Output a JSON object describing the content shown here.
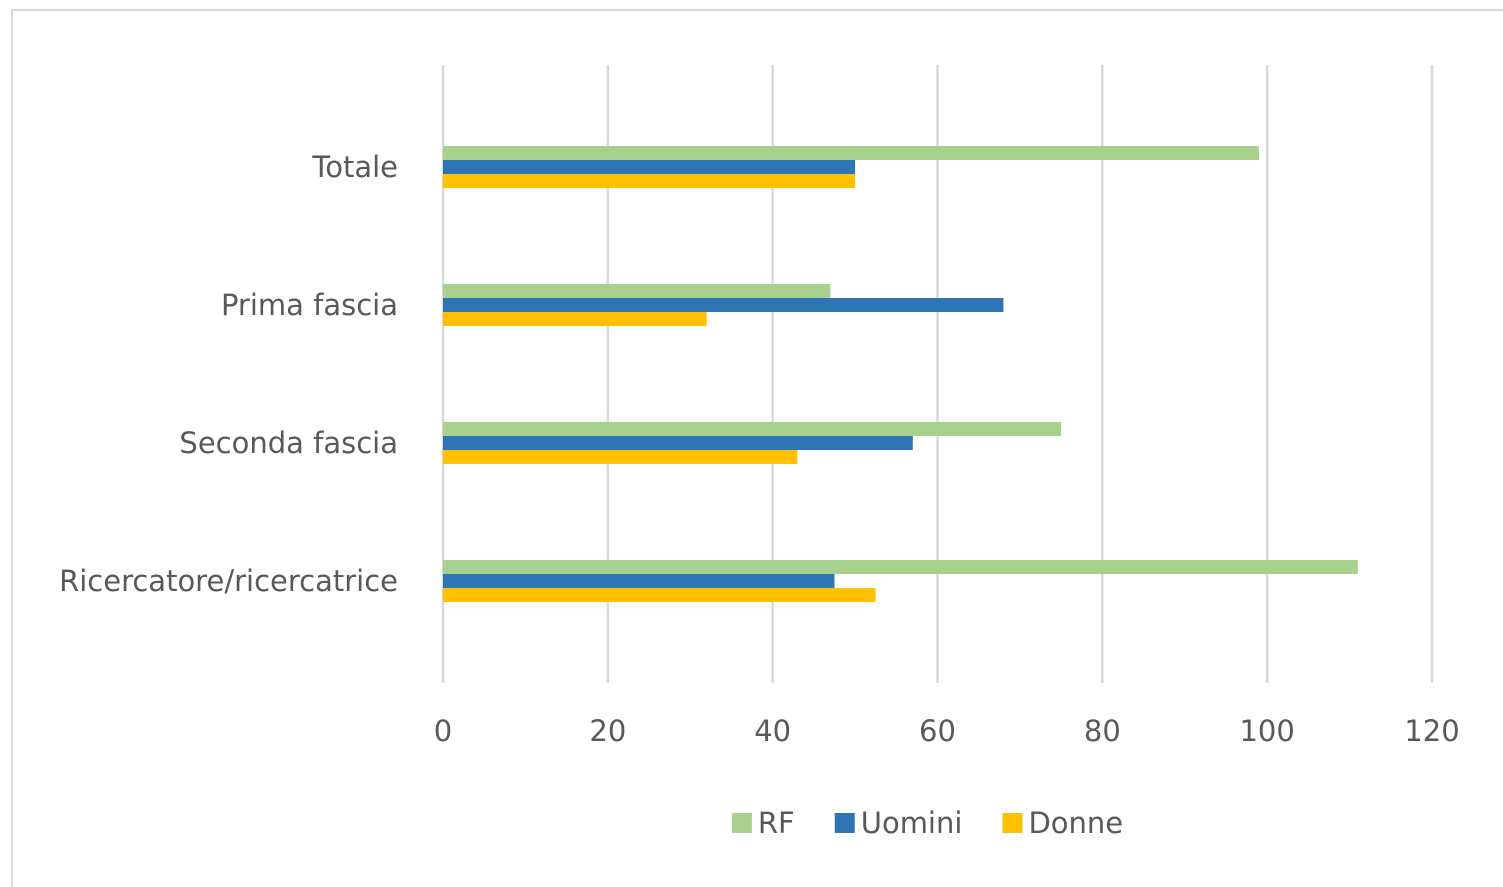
{
  "chart_data": {
    "type": "bar",
    "orientation": "horizontal",
    "categories": [
      "Totale",
      "Prima fascia",
      "Seconda fascia",
      "Ricercatore/ricercatrice"
    ],
    "series": [
      {
        "name": "RF",
        "color": "#a9d18e",
        "values": [
          99,
          47,
          75,
          111
        ]
      },
      {
        "name": "Uomini",
        "color": "#2e75b6",
        "values": [
          50,
          68,
          57,
          47.5
        ]
      },
      {
        "name": "Donne",
        "color": "#ffc000",
        "values": [
          50,
          32,
          43,
          52.5
        ]
      }
    ],
    "xlim": [
      0,
      120
    ],
    "xticks": [
      0,
      20,
      40,
      60,
      80,
      100,
      120
    ],
    "grid": true,
    "legend": "bottom"
  }
}
